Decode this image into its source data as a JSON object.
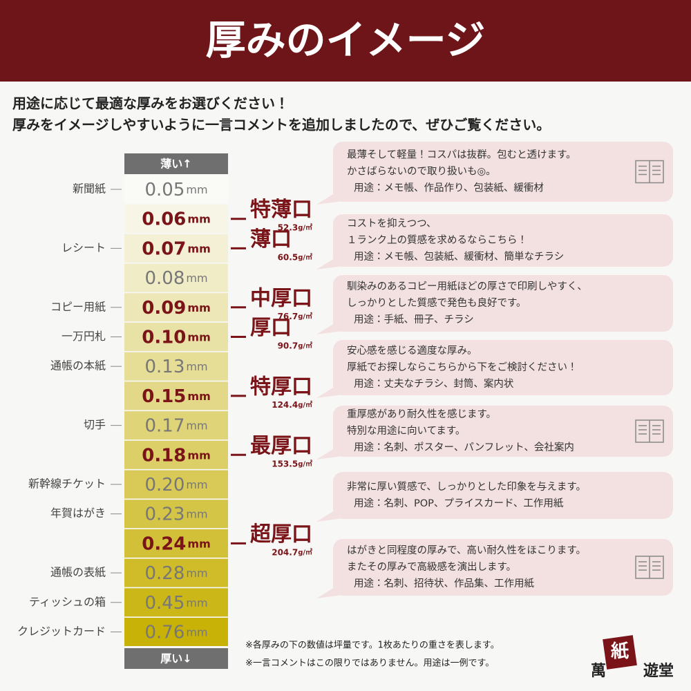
{
  "header": {
    "title": "厚みのイメージ"
  },
  "intro": [
    "用途に応じて最適な厚みをお選びください！",
    "厚みをイメージしやすいように一言コメントを追加しましたので、ぜひご覧ください。"
  ],
  "scale": {
    "top_label": "薄い↑",
    "bottom_label": "厚い↓",
    "unit": "mm",
    "weight_unit": "g/㎡",
    "rows": [
      {
        "thickness": "0.05",
        "example": "新聞紙"
      },
      {
        "thickness": "0.06",
        "grade": {
          "name": "特薄口",
          "weight": "52.3"
        }
      },
      {
        "thickness": "0.07",
        "example": "レシート",
        "grade": {
          "name": "薄口",
          "weight": "60.5"
        }
      },
      {
        "thickness": "0.08"
      },
      {
        "thickness": "0.09",
        "example": "コピー用紙",
        "grade": {
          "name": "中厚口",
          "weight": "76.7"
        }
      },
      {
        "thickness": "0.10",
        "example": "一万円札",
        "grade": {
          "name": "厚口",
          "weight": "90.7"
        }
      },
      {
        "thickness": "0.13",
        "example": "通帳の本紙"
      },
      {
        "thickness": "0.15",
        "grade": {
          "name": "特厚口",
          "weight": "124.4"
        }
      },
      {
        "thickness": "0.17",
        "example": "切手"
      },
      {
        "thickness": "0.18",
        "grade": {
          "name": "最厚口",
          "weight": "153.5"
        }
      },
      {
        "thickness": "0.20",
        "example": "新幹線チケット"
      },
      {
        "thickness": "0.23",
        "example": "年賀はがき"
      },
      {
        "thickness": "0.24",
        "grade": {
          "name": "超厚口",
          "weight": "204.7"
        }
      },
      {
        "thickness": "0.28",
        "example": "通帳の表紙"
      },
      {
        "thickness": "0.45",
        "example": "ティッシュの箱"
      },
      {
        "thickness": "0.76",
        "example": "クレジットカード"
      }
    ]
  },
  "comments": [
    {
      "lines": [
        "最薄そして軽量！コスパは抜群。包むと透けます。",
        "かさばらないので取り扱いも◎。"
      ],
      "usage": "用途：メモ帳、作品作り、包装紙、緩衝材"
    },
    {
      "lines": [
        "コストを抑えつつ、",
        "１ランク上の質感を求めるならこちら！"
      ],
      "usage": "用途：メモ帳、包装紙、緩衝材、簡単なチラシ"
    },
    {
      "lines": [
        "馴染みのあるコピー用紙ほどの厚さで印刷しやすく、",
        "しっかりとした質感で発色も良好です。"
      ],
      "usage": "用途：手紙、冊子、チラシ"
    },
    {
      "lines": [
        "安心感を感じる適度な厚み。",
        "厚紙でお探しならこちらから下をご検討ください！"
      ],
      "usage": "用途：丈夫なチラシ、封筒、案内状"
    },
    {
      "lines": [
        "重厚感があり耐久性を感じます。",
        "特別な用途に向いてます。"
      ],
      "usage": "用途：名刺、ポスター、パンフレット、会社案内"
    },
    {
      "lines": [
        "非常に厚い質感で、しっかりとした印象を与えます。"
      ],
      "usage": "用途：名刺、POP、プライスカード、工作用紙"
    },
    {
      "lines": [
        "はがきと同程度の厚みで、高い耐久性をほこります。",
        "またその厚みで高級感を演出します。"
      ],
      "usage": "用途：名刺、招待状、作品集、工作用紙"
    }
  ],
  "notes": [
    "※各厚みの下の数値は坪量です。1枚あたりの重さを表します。",
    "※一言コメントはこの限りではありません。用途は一例です。"
  ],
  "logo": {
    "chars": [
      "萬",
      "紙",
      "遊堂"
    ]
  }
}
